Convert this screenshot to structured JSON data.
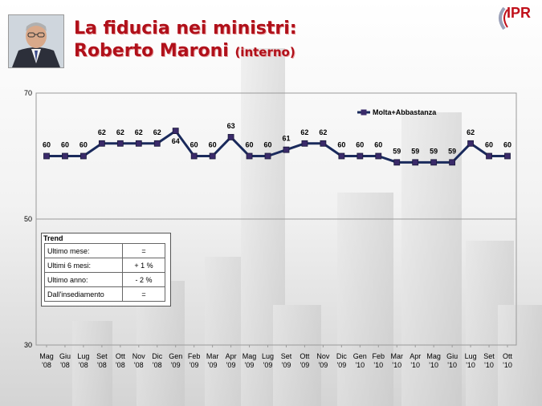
{
  "header": {
    "title_line1": "La fiducia nei ministri:",
    "title_name": "Roberto Maroni",
    "title_role": "(interno)"
  },
  "logo": {
    "text": "IPR"
  },
  "colors": {
    "title": "#b0101a",
    "line": "#1a2a5c",
    "marker": "#3a2a6a"
  },
  "chart_data": {
    "type": "line",
    "categories": [
      "Mag '08",
      "Giu '08",
      "Lug '08",
      "Set '08",
      "Ott '08",
      "Nov '08",
      "Dic '08",
      "Gen '09",
      "Feb '09",
      "Mar '09",
      "Apr '09",
      "Mag '09",
      "Lug '09",
      "Set '09",
      "Ott '09",
      "Nov '09",
      "Dic '09",
      "Gen '10",
      "Feb '10",
      "Mar '10",
      "Apr '10",
      "Mag '10",
      "Giu '10",
      "Lug '10",
      "Set '10",
      "Ott '10"
    ],
    "series": [
      {
        "name": "Molta+Abbastanza",
        "values": [
          60,
          60,
          60,
          62,
          62,
          62,
          62,
          64,
          60,
          60,
          63,
          60,
          60,
          61,
          62,
          62,
          60,
          60,
          60,
          59,
          59,
          59,
          59,
          62,
          60,
          60
        ]
      }
    ],
    "ylim": [
      30,
      70
    ],
    "yticks": [
      "70",
      "50",
      "30"
    ],
    "legend_position": "top-right",
    "grid": "horizontal"
  },
  "trend": {
    "title": "Trend",
    "rows": [
      {
        "label": "Ultimo mese:",
        "value": "="
      },
      {
        "label": "Ultimi 6 mesi:",
        "value": "+ 1 %"
      },
      {
        "label": "Ultimo anno:",
        "value": "- 2 %"
      },
      {
        "label": "Dall'insediamento",
        "value": "="
      }
    ]
  }
}
